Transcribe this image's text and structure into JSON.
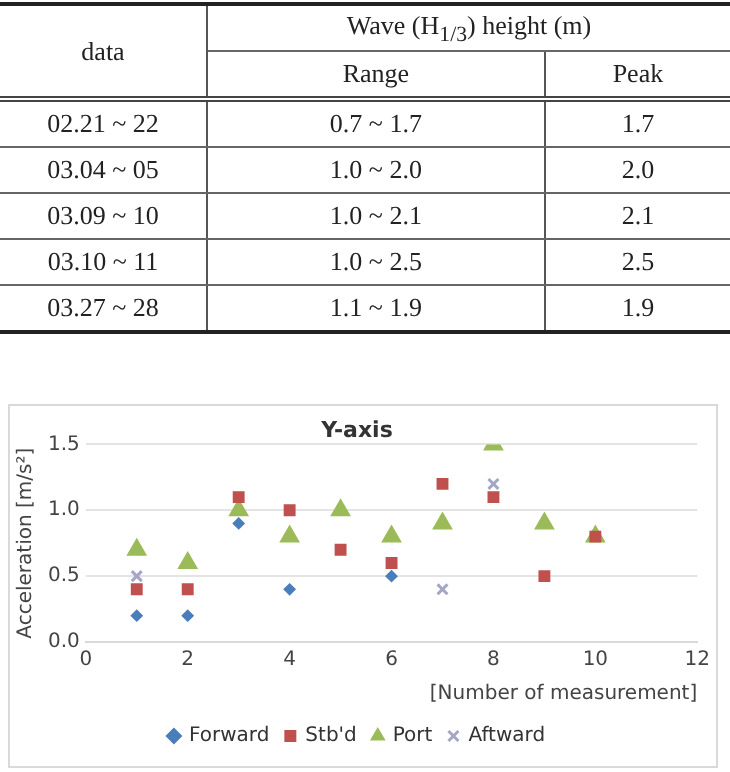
{
  "chart_data": [
    {
      "type": "other",
      "annotations": [
        "data",
        "Wave (H$_{1/3}$) height (m)"
      ],
      "categories": [
        "Range",
        "Peak"
      ],
      "y_categories": [
        "02.21 ~ 22",
        "03.04 ~ 05",
        "03.09 ~ 10",
        "03.10 ~ 11",
        "03.27 ~ 28"
      ],
      "cell_labels": [
        [
          "0.7 ~ 1.7",
          "1.7"
        ],
        [
          "1.0 ~ 2.0",
          "2.0"
        ],
        [
          "1.0 ~ 2.1",
          "2.1"
        ],
        [
          "1.0 ~ 2.5",
          "2.5"
        ],
        [
          "1.1 ~ 1.9",
          "1.9"
        ]
      ]
    },
    {
      "type": "scatter",
      "title": "Y-axis",
      "xlabel": "[Number of measurement]",
      "ylabel": "Acceleration [m/s²]",
      "xlim": [
        0,
        12
      ],
      "xticks": [
        0,
        2,
        4,
        6,
        8,
        10,
        12
      ],
      "ylim": [
        0,
        1.5
      ],
      "yticks": [
        {
          "value": 0,
          "label": "0.0"
        },
        {
          "value": 0.5,
          "label": "0.5"
        },
        {
          "value": 1,
          "label": "1.0"
        },
        {
          "value": 1.5,
          "label": "1.5"
        }
      ],
      "grid": "y",
      "legend": "bottom",
      "series": [
        {
          "name": "Forward",
          "color": "#4a7ebb",
          "marker": "diamond",
          "x": [
            1,
            2,
            3,
            4,
            6
          ],
          "values": [
            0.2,
            0.2,
            0.9,
            0.4,
            0.5
          ]
        },
        {
          "name": "Stb'd",
          "color": "#c0504d",
          "marker": "square",
          "x": [
            1,
            2,
            3,
            4,
            5,
            6,
            7,
            8,
            9,
            10
          ],
          "values": [
            0.4,
            0.4,
            1.1,
            1.0,
            0.7,
            0.6,
            1.2,
            1.1,
            0.5,
            0.8
          ]
        },
        {
          "name": "Port",
          "color": "#9bbb59",
          "marker": "triangle",
          "x": [
            1,
            2,
            3,
            4,
            5,
            6,
            7,
            8,
            9,
            10
          ],
          "values": [
            0.7,
            0.6,
            1.0,
            0.8,
            1.0,
            0.8,
            0.9,
            1.5,
            0.9,
            0.8
          ]
        },
        {
          "name": "Aftward",
          "color": "#a5a5c8",
          "marker": "cross",
          "x": [
            1,
            7,
            8
          ],
          "values": [
            0.5,
            0.4,
            1.2
          ]
        }
      ]
    }
  ]
}
